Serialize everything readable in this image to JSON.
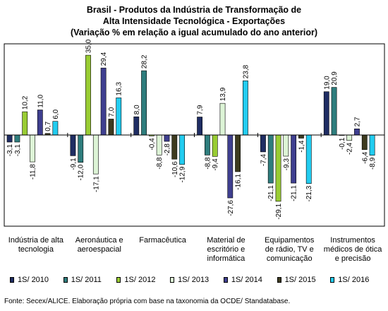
{
  "chart_data": {
    "type": "bar",
    "title": [
      "Brasil - Produtos da Indústria de Transformação de",
      "Alta Intensidade Tecnológica - Exportações",
      "(Variação % em relação a igual acumulado do ano anterior)"
    ],
    "categories": [
      "Indústria de alta tecnologia",
      "Aeronáutica e aeroespacial",
      "Farmacêutica",
      "Material de escritório e informática",
      "Equipamentos de rádio, TV e comunicação",
      "Instrumentos médicos de ótica e precisão"
    ],
    "series": [
      {
        "name": "1S/ 2010",
        "color": "#1f2d63",
        "values": [
          -3.1,
          -9.1,
          8.0,
          7.9,
          -7.4,
          19.0
        ],
        "labels": [
          "-3,1",
          "-9,1",
          "8,0",
          "7,9",
          "-7,4",
          "19,0"
        ]
      },
      {
        "name": "1S/ 2011",
        "color": "#2e7d7d",
        "values": [
          -3.1,
          -12.0,
          28.2,
          -8.8,
          -21.1,
          20.9
        ],
        "labels": [
          "-3,1",
          "-12,0",
          "28,2",
          "-8,8",
          "-21,1",
          "20,9"
        ]
      },
      {
        "name": "1S/ 2012",
        "color": "#99cc33",
        "values": [
          10.2,
          35.0,
          -0.4,
          -9.4,
          -29.1,
          -0.1
        ],
        "labels": [
          "10,2",
          "35,0",
          "-0,4",
          "-9,4",
          "-29,1",
          "-0,1"
        ]
      },
      {
        "name": "1S/ 2013",
        "color": "#ddf4d6",
        "values": [
          -11.8,
          -17.1,
          -8.8,
          13.9,
          -9.3,
          -2.4
        ],
        "labels": [
          "-11,8",
          "-17,1",
          "-8,8",
          "13,9",
          "-9,3",
          "-2,4"
        ]
      },
      {
        "name": "1S/ 2014",
        "color": "#3f3f8f",
        "values": [
          11.0,
          29.4,
          -2.8,
          -27.6,
          -21.1,
          2.7
        ],
        "labels": [
          "11,0",
          "29,4",
          "-2,8",
          "-27,6",
          "-21,1",
          "2,7"
        ]
      },
      {
        "name": "1S/ 2015",
        "color": "#3d3a1f",
        "values": [
          0.7,
          7.0,
          -10.6,
          -16.1,
          -1.4,
          -6.4
        ],
        "labels": [
          "0,7",
          "7,0",
          "-10,6",
          "-16,1",
          "-1,4",
          "-6,4"
        ]
      },
      {
        "name": "1S/ 2016",
        "color": "#22ccf0",
        "values": [
          6.0,
          16.3,
          -12.9,
          23.8,
          -21.3,
          -8.9
        ],
        "labels": [
          "6,0",
          "16,3",
          "-12,9",
          "23,8",
          "-21,3",
          "-8,9"
        ]
      }
    ],
    "ylim": [
      -40,
      40
    ],
    "grid": false,
    "legend_position": "bottom"
  },
  "source": "Fonte: Secex/ALICE. Elaboração própria com base na taxonomia da OCDE/ Standatabase."
}
